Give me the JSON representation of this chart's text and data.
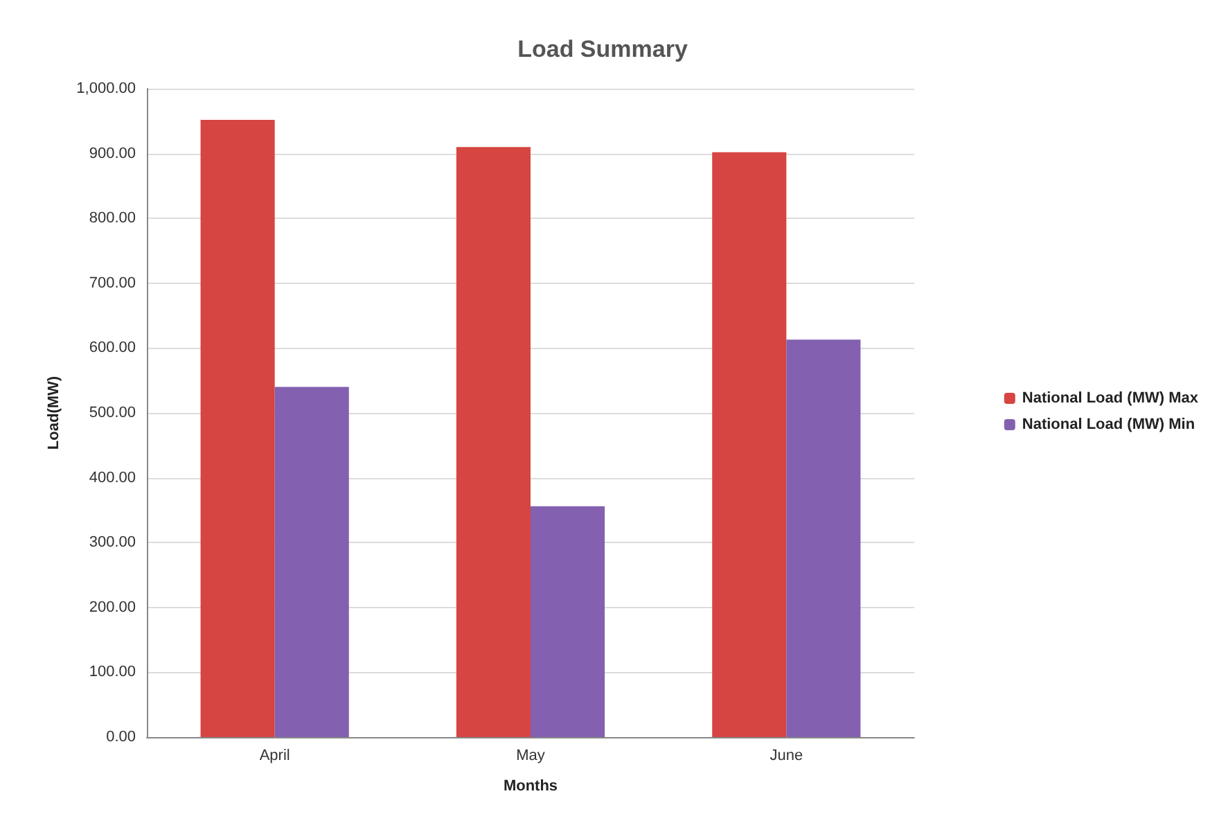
{
  "chart_data": {
    "type": "bar",
    "title": "Load Summary",
    "xlabel": "Months",
    "ylabel": "Load(MW)",
    "categories": [
      "April",
      "May",
      "June"
    ],
    "series": [
      {
        "name": "National Load (MW) Max",
        "color": "#d64541",
        "values": [
          952,
          910,
          902
        ]
      },
      {
        "name": "National Load (MW) Min",
        "color": "#8460b0",
        "values": [
          540,
          356,
          613
        ]
      }
    ],
    "ylim": [
      0,
      1000
    ],
    "yticks": [
      {
        "value": 0,
        "label": "0.00"
      },
      {
        "value": 100,
        "label": "100.00"
      },
      {
        "value": 200,
        "label": "200.00"
      },
      {
        "value": 300,
        "label": "300.00"
      },
      {
        "value": 400,
        "label": "400.00"
      },
      {
        "value": 500,
        "label": "500.00"
      },
      {
        "value": 600,
        "label": "600.00"
      },
      {
        "value": 700,
        "label": "700.00"
      },
      {
        "value": 800,
        "label": "800.00"
      },
      {
        "value": 900,
        "label": "900.00"
      },
      {
        "value": 1000,
        "label": "1,000.00"
      }
    ],
    "grid": "y",
    "legend": "right"
  }
}
